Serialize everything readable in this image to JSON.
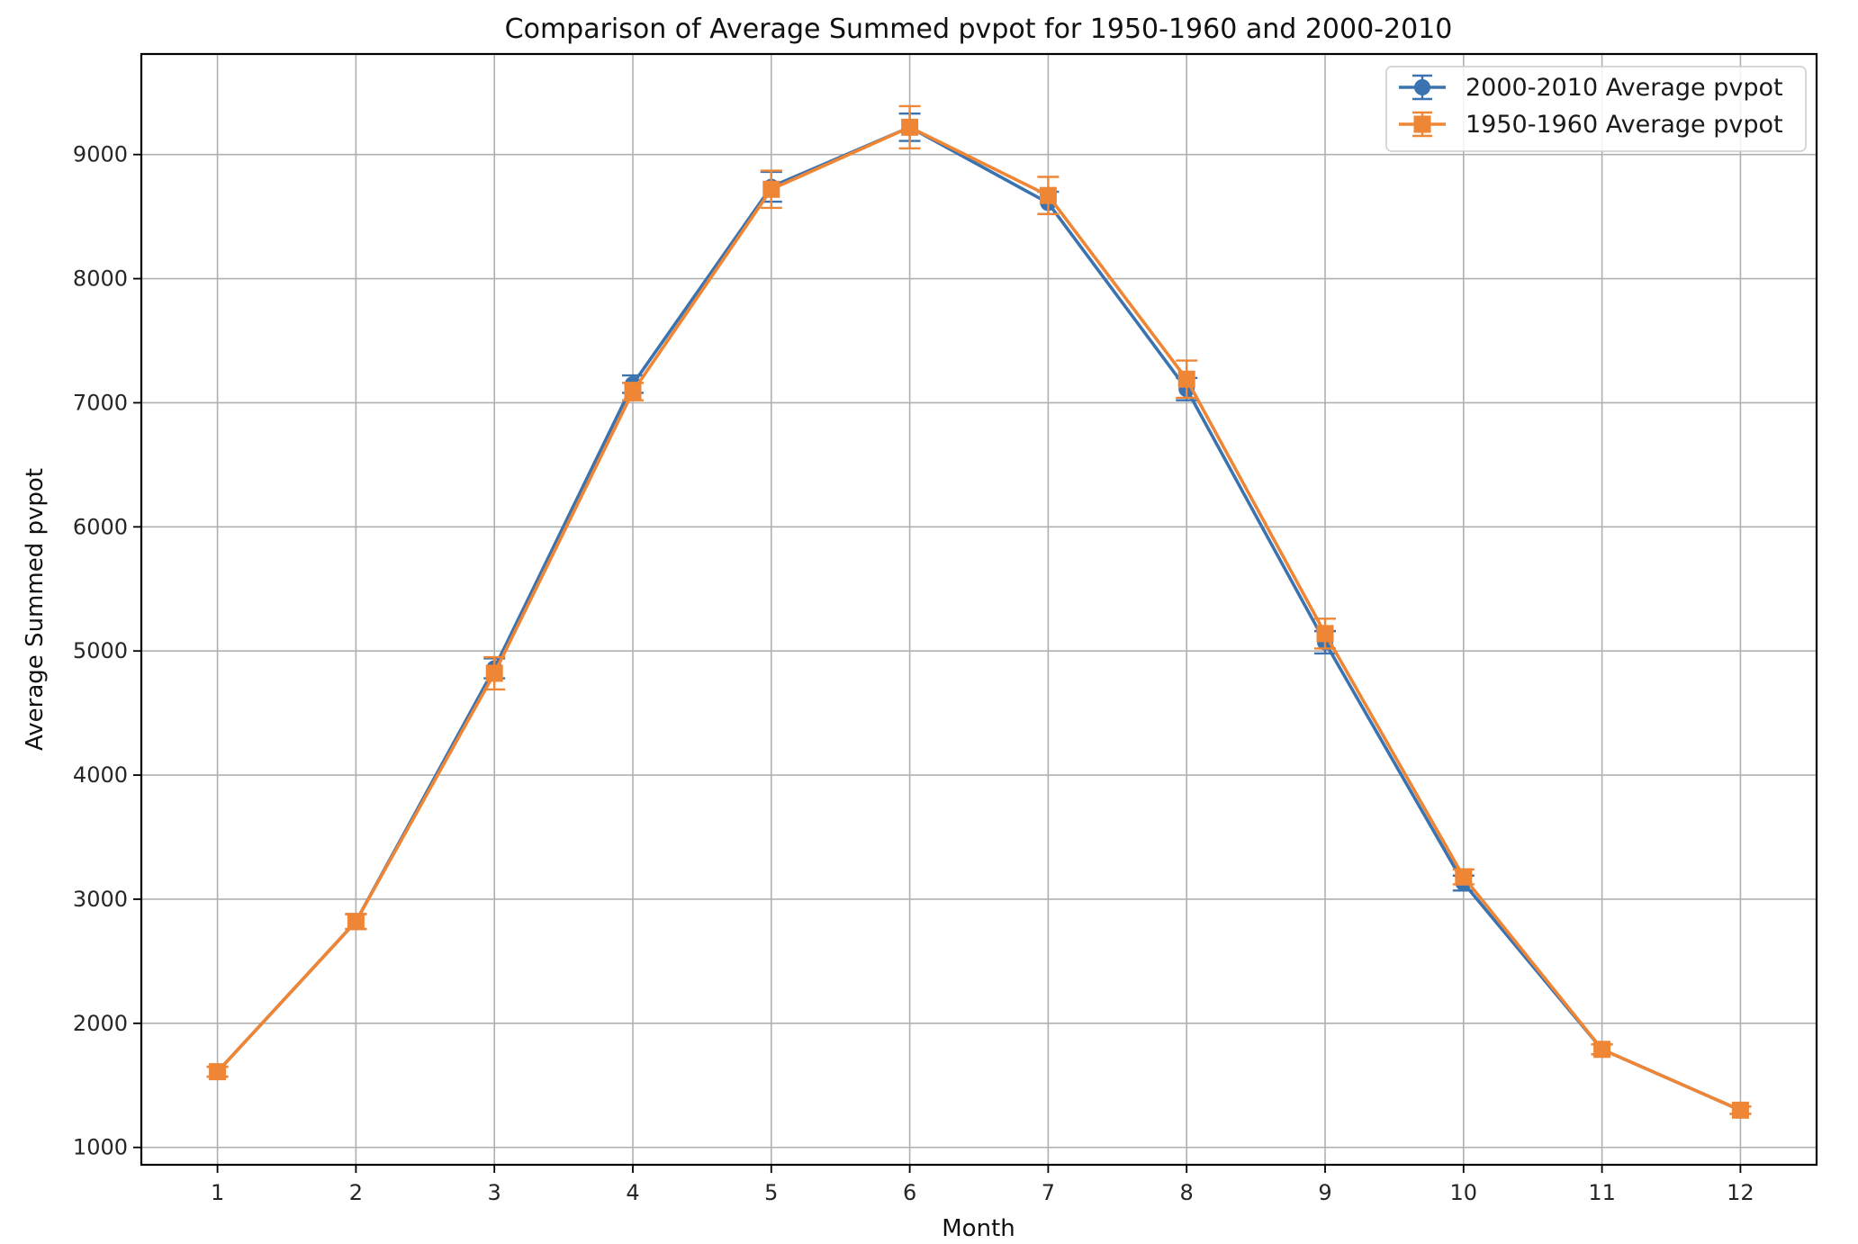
{
  "chart_data": {
    "type": "line",
    "title": "Comparison of Average Summed pvpot for 1950-1960 and 2000-2010",
    "xlabel": "Month",
    "ylabel": "Average Summed pvpot",
    "x": [
      1,
      2,
      3,
      4,
      5,
      6,
      7,
      8,
      9,
      10,
      11,
      12
    ],
    "xlim": [
      0.45,
      12.55
    ],
    "ylim": [
      860,
      9810
    ],
    "yticks": [
      1000,
      2000,
      3000,
      4000,
      5000,
      6000,
      7000,
      8000,
      9000
    ],
    "grid": true,
    "legend_position": "top-right",
    "error_bars": true,
    "series": [
      {
        "name": "2000-2010 Average pvpot",
        "color": "#3b73b0",
        "marker": "circle",
        "values": [
          1610,
          2820,
          4860,
          7150,
          8740,
          9220,
          8610,
          7110,
          5070,
          3130,
          1790,
          1300
        ],
        "errors": [
          40,
          60,
          80,
          70,
          120,
          110,
          90,
          90,
          90,
          60,
          40,
          30
        ]
      },
      {
        "name": "1950-1960 Average pvpot",
        "color": "#ef8636",
        "marker": "square",
        "values": [
          1610,
          2820,
          4820,
          7090,
          8720,
          9220,
          8670,
          7190,
          5140,
          3180,
          1790,
          1300
        ],
        "errors": [
          40,
          60,
          130,
          70,
          150,
          170,
          150,
          150,
          120,
          60,
          40,
          30
        ]
      }
    ]
  }
}
